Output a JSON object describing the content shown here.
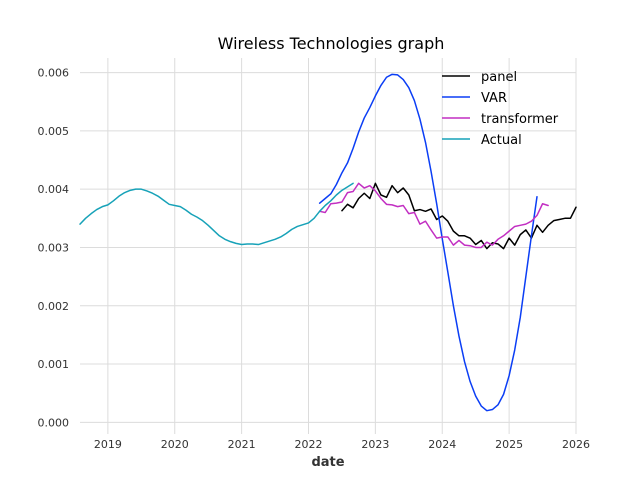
{
  "chart_data": {
    "type": "line",
    "title": "Wireless Technologies graph",
    "xlabel": "date",
    "ylabel": "",
    "xlim": [
      "2018-08-01",
      "2026-01-01"
    ],
    "ylim": [
      -0.0002,
      0.00625
    ],
    "x_ticks": [
      "2019",
      "2020",
      "2021",
      "2022",
      "2023",
      "2024",
      "2025",
      "2026"
    ],
    "y_ticks": [
      "0.000",
      "0.001",
      "0.002",
      "0.003",
      "0.004",
      "0.005",
      "0.006"
    ],
    "grid": true,
    "legend_position": "top-right",
    "series": [
      {
        "name": "panel",
        "color": "#000000",
        "points": [
          [
            "2022-07-01",
            0.00363
          ],
          [
            "2022-08-01",
            0.00374
          ],
          [
            "2022-09-01",
            0.00368
          ],
          [
            "2022-10-01",
            0.00384
          ],
          [
            "2022-11-01",
            0.00393
          ],
          [
            "2022-12-01",
            0.00384
          ],
          [
            "2023-01-01",
            0.0041
          ],
          [
            "2023-02-01",
            0.0039
          ],
          [
            "2023-03-01",
            0.00386
          ],
          [
            "2023-04-01",
            0.00406
          ],
          [
            "2023-05-01",
            0.00394
          ],
          [
            "2023-06-01",
            0.00402
          ],
          [
            "2023-07-01",
            0.0039
          ],
          [
            "2023-08-01",
            0.00363
          ],
          [
            "2023-09-01",
            0.00365
          ],
          [
            "2023-10-01",
            0.00362
          ],
          [
            "2023-11-01",
            0.00366
          ],
          [
            "2023-12-01",
            0.00348
          ],
          [
            "2024-01-01",
            0.00354
          ],
          [
            "2024-02-01",
            0.00345
          ],
          [
            "2024-03-01",
            0.00328
          ],
          [
            "2024-04-01",
            0.0032
          ],
          [
            "2024-05-01",
            0.0032
          ],
          [
            "2024-06-01",
            0.00316
          ],
          [
            "2024-07-01",
            0.00305
          ],
          [
            "2024-08-01",
            0.00312
          ],
          [
            "2024-09-01",
            0.00298
          ],
          [
            "2024-10-01",
            0.00308
          ],
          [
            "2024-11-01",
            0.00306
          ],
          [
            "2024-12-01",
            0.00298
          ],
          [
            "2025-01-01",
            0.00316
          ],
          [
            "2025-02-01",
            0.00304
          ],
          [
            "2025-03-01",
            0.00322
          ],
          [
            "2025-04-01",
            0.0033
          ],
          [
            "2025-05-01",
            0.00316
          ],
          [
            "2025-06-01",
            0.00338
          ],
          [
            "2025-07-01",
            0.00326
          ],
          [
            "2025-08-01",
            0.00338
          ],
          [
            "2025-09-01",
            0.00346
          ],
          [
            "2025-10-01",
            0.00348
          ],
          [
            "2025-11-01",
            0.0035
          ],
          [
            "2025-12-01",
            0.0035
          ],
          [
            "2026-01-01",
            0.00369
          ]
        ]
      },
      {
        "name": "VAR",
        "color": "#0b3ef5",
        "points": [
          [
            "2022-03-01",
            0.00376
          ],
          [
            "2022-04-01",
            0.00384
          ],
          [
            "2022-05-01",
            0.00392
          ],
          [
            "2022-06-01",
            0.00408
          ],
          [
            "2022-07-01",
            0.00428
          ],
          [
            "2022-08-01",
            0.00445
          ],
          [
            "2022-09-01",
            0.0047
          ],
          [
            "2022-10-01",
            0.00498
          ],
          [
            "2022-11-01",
            0.00522
          ],
          [
            "2022-12-01",
            0.0054
          ],
          [
            "2023-01-01",
            0.0056
          ],
          [
            "2023-02-01",
            0.00578
          ],
          [
            "2023-03-01",
            0.00592
          ],
          [
            "2023-04-01",
            0.00597
          ],
          [
            "2023-05-01",
            0.00596
          ],
          [
            "2023-06-01",
            0.00588
          ],
          [
            "2023-07-01",
            0.00574
          ],
          [
            "2023-08-01",
            0.00552
          ],
          [
            "2023-09-01",
            0.0052
          ],
          [
            "2023-10-01",
            0.0048
          ],
          [
            "2023-11-01",
            0.0043
          ],
          [
            "2023-12-01",
            0.00375
          ],
          [
            "2024-01-01",
            0.00315
          ],
          [
            "2024-02-01",
            0.00258
          ],
          [
            "2024-03-01",
            0.002
          ],
          [
            "2024-04-01",
            0.00148
          ],
          [
            "2024-05-01",
            0.00104
          ],
          [
            "2024-06-01",
            0.0007
          ],
          [
            "2024-07-01",
            0.00045
          ],
          [
            "2024-08-01",
            0.00028
          ],
          [
            "2024-09-01",
            0.0002
          ],
          [
            "2024-10-01",
            0.00022
          ],
          [
            "2024-11-01",
            0.0003
          ],
          [
            "2024-12-01",
            0.00048
          ],
          [
            "2025-01-01",
            0.0008
          ],
          [
            "2025-02-01",
            0.00124
          ],
          [
            "2025-03-01",
            0.0018
          ],
          [
            "2025-04-01",
            0.0025
          ],
          [
            "2025-05-01",
            0.0032
          ],
          [
            "2025-06-01",
            0.00387
          ]
        ]
      },
      {
        "name": "transformer",
        "color": "#c22fc2",
        "points": [
          [
            "2022-03-01",
            0.00362
          ],
          [
            "2022-04-01",
            0.0036
          ],
          [
            "2022-05-01",
            0.00375
          ],
          [
            "2022-06-01",
            0.00376
          ],
          [
            "2022-07-01",
            0.00378
          ],
          [
            "2022-08-01",
            0.00394
          ],
          [
            "2022-09-01",
            0.00396
          ],
          [
            "2022-10-01",
            0.0041
          ],
          [
            "2022-11-01",
            0.00402
          ],
          [
            "2022-12-01",
            0.00406
          ],
          [
            "2023-01-01",
            0.00397
          ],
          [
            "2023-02-01",
            0.00384
          ],
          [
            "2023-03-01",
            0.00374
          ],
          [
            "2023-04-01",
            0.00373
          ],
          [
            "2023-05-01",
            0.0037
          ],
          [
            "2023-06-01",
            0.00372
          ],
          [
            "2023-07-01",
            0.00358
          ],
          [
            "2023-08-01",
            0.0036
          ],
          [
            "2023-09-01",
            0.0034
          ],
          [
            "2023-10-01",
            0.00345
          ],
          [
            "2023-11-01",
            0.0033
          ],
          [
            "2023-12-01",
            0.00316
          ],
          [
            "2024-01-01",
            0.00318
          ],
          [
            "2024-02-01",
            0.00318
          ],
          [
            "2024-03-01",
            0.00304
          ],
          [
            "2024-04-01",
            0.00312
          ],
          [
            "2024-05-01",
            0.00304
          ],
          [
            "2024-06-01",
            0.00303
          ],
          [
            "2024-07-01",
            0.003
          ],
          [
            "2024-08-01",
            0.003
          ],
          [
            "2024-09-01",
            0.00309
          ],
          [
            "2024-10-01",
            0.00304
          ],
          [
            "2024-11-01",
            0.00314
          ],
          [
            "2024-12-01",
            0.0032
          ],
          [
            "2025-01-01",
            0.00328
          ],
          [
            "2025-02-01",
            0.00336
          ],
          [
            "2025-03-01",
            0.00338
          ],
          [
            "2025-04-01",
            0.0034
          ],
          [
            "2025-05-01",
            0.00345
          ],
          [
            "2025-06-01",
            0.00355
          ],
          [
            "2025-07-01",
            0.00375
          ],
          [
            "2025-08-01",
            0.00372
          ]
        ]
      },
      {
        "name": "Actual",
        "color": "#17a2b8",
        "points": [
          [
            "2018-08-01",
            0.0034
          ],
          [
            "2018-09-01",
            0.0035
          ],
          [
            "2018-10-01",
            0.00358
          ],
          [
            "2018-11-01",
            0.00365
          ],
          [
            "2018-12-01",
            0.0037
          ],
          [
            "2019-01-01",
            0.00373
          ],
          [
            "2019-02-01",
            0.0038
          ],
          [
            "2019-03-01",
            0.00388
          ],
          [
            "2019-04-01",
            0.00394
          ],
          [
            "2019-05-01",
            0.00398
          ],
          [
            "2019-06-01",
            0.004
          ],
          [
            "2019-07-01",
            0.004
          ],
          [
            "2019-08-01",
            0.00397
          ],
          [
            "2019-09-01",
            0.00393
          ],
          [
            "2019-10-01",
            0.00388
          ],
          [
            "2019-11-01",
            0.00381
          ],
          [
            "2019-12-01",
            0.00374
          ],
          [
            "2020-01-01",
            0.00372
          ],
          [
            "2020-02-01",
            0.0037
          ],
          [
            "2020-03-01",
            0.00364
          ],
          [
            "2020-04-01",
            0.00357
          ],
          [
            "2020-05-01",
            0.00352
          ],
          [
            "2020-06-01",
            0.00346
          ],
          [
            "2020-07-01",
            0.00338
          ],
          [
            "2020-08-01",
            0.00329
          ],
          [
            "2020-09-01",
            0.0032
          ],
          [
            "2020-10-01",
            0.00314
          ],
          [
            "2020-11-01",
            0.0031
          ],
          [
            "2020-12-01",
            0.00307
          ],
          [
            "2021-01-01",
            0.00305
          ],
          [
            "2021-02-01",
            0.00306
          ],
          [
            "2021-03-01",
            0.00306
          ],
          [
            "2021-04-01",
            0.00305
          ],
          [
            "2021-05-01",
            0.00308
          ],
          [
            "2021-06-01",
            0.00311
          ],
          [
            "2021-07-01",
            0.00314
          ],
          [
            "2021-08-01",
            0.00318
          ],
          [
            "2021-09-01",
            0.00324
          ],
          [
            "2021-10-01",
            0.00331
          ],
          [
            "2021-11-01",
            0.00336
          ],
          [
            "2021-12-01",
            0.00339
          ],
          [
            "2022-01-01",
            0.00342
          ],
          [
            "2022-02-01",
            0.0035
          ],
          [
            "2022-03-01",
            0.00362
          ],
          [
            "2022-04-01",
            0.00372
          ],
          [
            "2022-05-01",
            0.0038
          ],
          [
            "2022-06-01",
            0.0039
          ],
          [
            "2022-07-01",
            0.00398
          ],
          [
            "2022-08-01",
            0.00404
          ],
          [
            "2022-09-01",
            0.0041
          ]
        ]
      }
    ]
  }
}
